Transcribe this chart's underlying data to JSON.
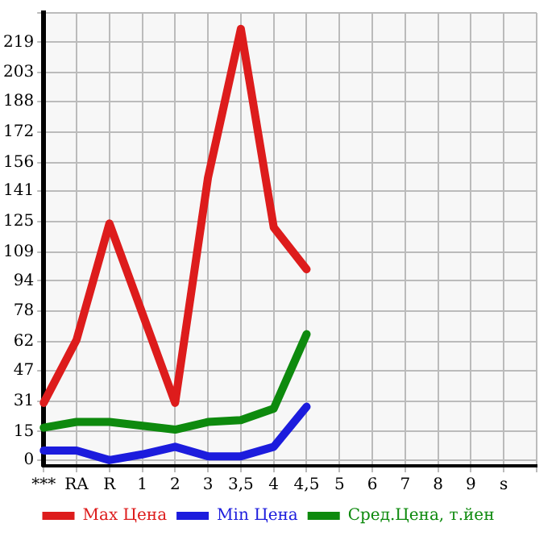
{
  "chart_data": {
    "type": "line",
    "categories": [
      "***",
      "RA",
      "R",
      "1",
      "2",
      "3",
      "3,5",
      "4",
      "4,5",
      "5",
      "6",
      "7",
      "8",
      "9",
      "s",
      null
    ],
    "series": [
      {
        "name": "Max Цена",
        "color": "#dd1c1c",
        "values": [
          30,
          63,
          124,
          77,
          30,
          148,
          226,
          122,
          100,
          null,
          null,
          null,
          null,
          null,
          null,
          null
        ]
      },
      {
        "name": "Min Цена",
        "color": "#1c1cdd",
        "values": [
          5,
          5,
          0,
          3,
          7,
          2,
          2,
          7,
          28,
          null,
          null,
          null,
          null,
          null,
          null,
          null
        ]
      },
      {
        "name": "Сред.Цена, т.йен",
        "color": "#0e8a0e",
        "values": [
          17,
          20,
          20,
          18,
          16,
          20,
          21,
          27,
          66,
          null,
          null,
          null,
          null,
          null,
          null,
          null
        ]
      }
    ],
    "ylim": [
      -3,
      234.375
    ],
    "yticks": [
      0,
      15,
      31,
      47,
      62,
      78,
      94,
      109,
      125,
      141,
      156,
      172,
      188,
      203,
      219,
      {
        "value": 234.375,
        "label": null
      }
    ],
    "grid": true,
    "legend": "bottom",
    "marker": "none",
    "line_style": "solid"
  }
}
